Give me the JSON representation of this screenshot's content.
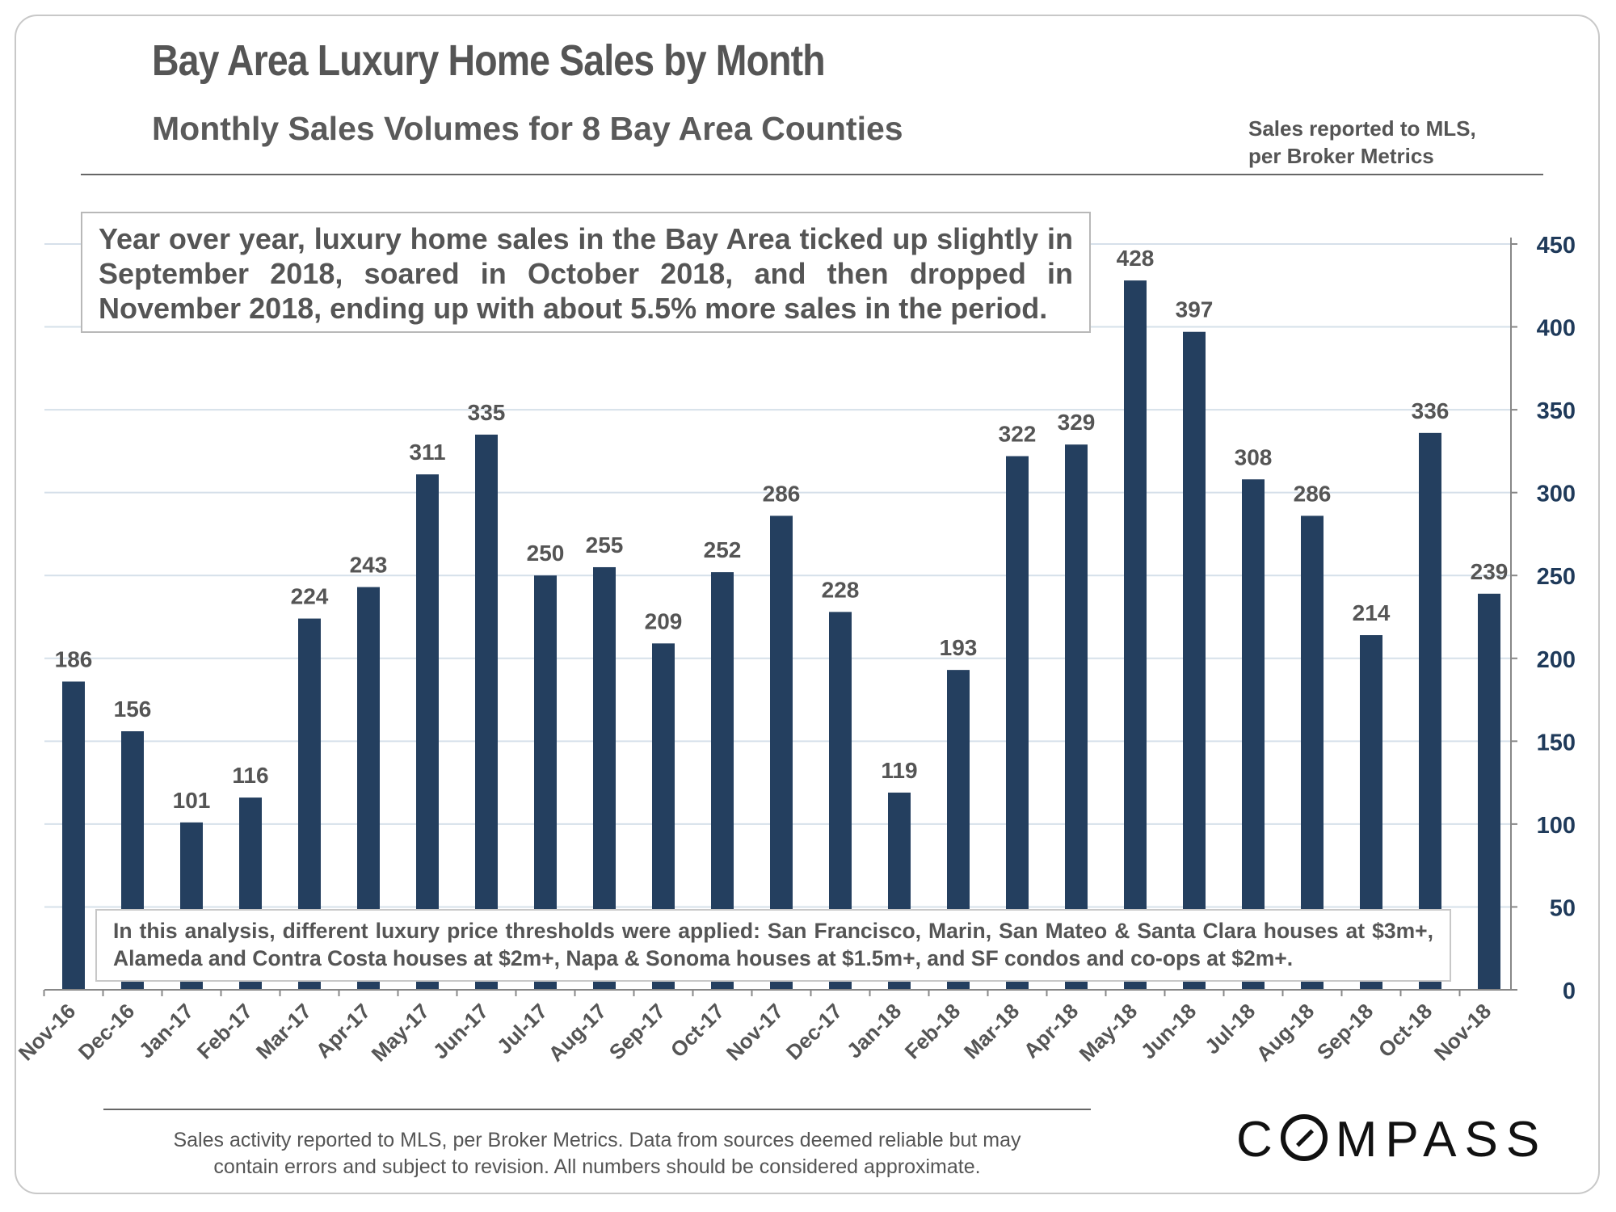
{
  "header": {
    "title": "Bay Area Luxury Home Sales by Month",
    "subtitle": "Monthly Sales Volumes for 8 Bay Area Counties",
    "source_note_line1": "Sales reported to MLS,",
    "source_note_line2": "per Broker Metrics"
  },
  "callouts": {
    "top": "Year over year, luxury home sales in the Bay Area ticked up slightly in September 2018, soared in October 2018, and then dropped in November 2018, ending up with about 5.5% more sales in the period.",
    "bottom": "In this analysis, different luxury price thresholds were applied: San Francisco, Marin, San Mateo & Santa Clara houses at $3m+, Alameda and Contra Costa houses at $2m+, Napa & Sonoma houses at $1.5m+, and SF condos and co-ops at $2m+."
  },
  "footer": {
    "line1": "Sales activity reported to MLS, per Broker Metrics. Data from sources deemed reliable but may",
    "line2": "contain errors and subject to revision. All numbers should be considered approximate."
  },
  "logo": {
    "letter_c": "C",
    "rest": "MPASS"
  },
  "colors": {
    "bar": "#243f5f",
    "axis_text": "#1f3a5a",
    "label_text": "#555555",
    "grid": "#d6e0ea"
  },
  "chart_data": {
    "type": "bar",
    "title": "Bay Area Luxury Home Sales by Month",
    "xlabel": "",
    "ylabel": "",
    "ylim": [
      0,
      450
    ],
    "yticks": [
      0,
      50,
      100,
      150,
      200,
      250,
      300,
      350,
      400,
      450
    ],
    "y_axis_position": "right",
    "grid": true,
    "categories": [
      "Nov-16",
      "Dec-16",
      "Jan-17",
      "Feb-17",
      "Mar-17",
      "Apr-17",
      "May-17",
      "Jun-17",
      "Jul-17",
      "Aug-17",
      "Sep-17",
      "Oct-17",
      "Nov-17",
      "Dec-17",
      "Jan-18",
      "Feb-18",
      "Mar-18",
      "Apr-18",
      "May-18",
      "Jun-18",
      "Jul-18",
      "Aug-18",
      "Sep-18",
      "Oct-18",
      "Nov-18"
    ],
    "values": [
      186,
      156,
      101,
      116,
      224,
      243,
      311,
      335,
      250,
      255,
      209,
      252,
      286,
      228,
      119,
      193,
      322,
      329,
      428,
      397,
      308,
      286,
      214,
      336,
      239
    ]
  }
}
